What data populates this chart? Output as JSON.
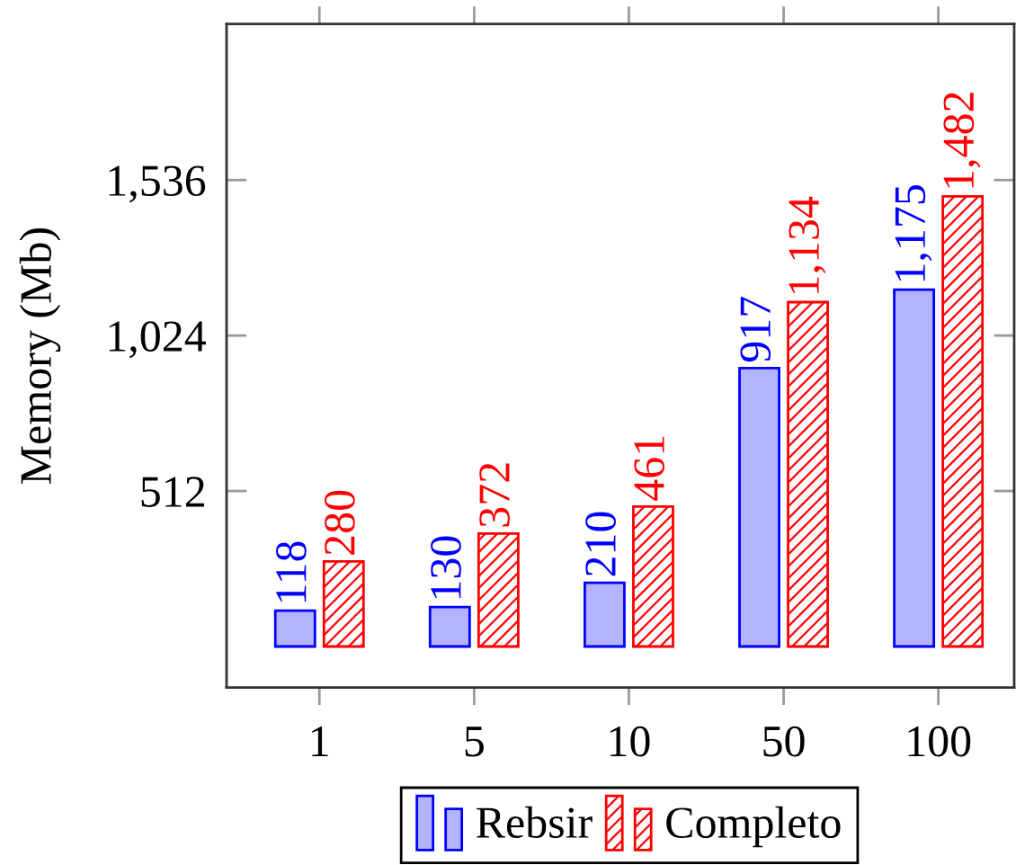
{
  "chart_data": {
    "type": "bar",
    "ylabel": "Memory (Mb)",
    "categories": [
      "1",
      "5",
      "10",
      "50",
      "100"
    ],
    "series": [
      {
        "name": "Rebsir",
        "color": "#b3b3ff",
        "values": [
          118,
          130,
          210,
          917,
          1175
        ],
        "value_labels": [
          "118",
          "130",
          "210",
          "917",
          "1,175"
        ]
      },
      {
        "name": "Completo",
        "color": "#ff0000",
        "values": [
          280,
          372,
          461,
          1134,
          1482
        ],
        "value_labels": [
          "280",
          "372",
          "461",
          "1,134",
          "1,482"
        ]
      }
    ],
    "ylim": [
      -135,
      2050
    ],
    "yticks": [
      512,
      {
        "value": 1024,
        "label": "1,024"
      },
      {
        "value": 1536,
        "label": "1,536"
      }
    ],
    "grid": false,
    "legend": "bottom"
  }
}
